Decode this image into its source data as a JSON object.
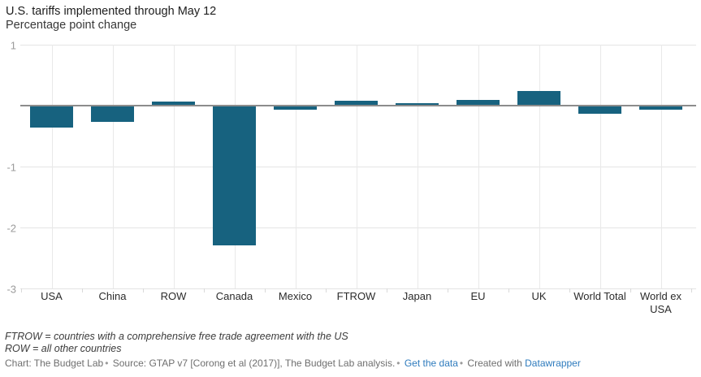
{
  "header": {
    "title": "U.S. tariffs implemented through May 12",
    "subtitle": "Percentage point change"
  },
  "chart_data": {
    "type": "bar",
    "categories": [
      "USA",
      "China",
      "ROW",
      "Canada",
      "Mexico",
      "FTROW",
      "Japan",
      "EU",
      "UK",
      "World Total",
      "World ex USA"
    ],
    "values": [
      -0.36,
      -0.27,
      0.07,
      -2.29,
      -0.07,
      0.08,
      0.04,
      0.09,
      0.24,
      -0.13,
      -0.06
    ],
    "title": "U.S. tariffs implemented through May 12",
    "subtitle": "Percentage point change",
    "xlabel": "",
    "ylabel": "Percentage point change",
    "ylim": [
      -3,
      1
    ],
    "yticks": [
      1,
      0,
      -1,
      -2,
      -3
    ],
    "labeled_yticks": [
      1,
      -1,
      -2,
      -3
    ],
    "grid": true,
    "legend": false,
    "bar_color": "#17627f"
  },
  "colors": {
    "bar": "#17627f",
    "gridline": "#e4e4e4",
    "zero_line": "#8c8c8c",
    "link": "#2e7bbd"
  },
  "footnotes": [
    "FTROW = countries with a comprehensive free trade agreement with the US",
    "ROW = all other countries"
  ],
  "footer": {
    "chart_credit": "Chart: The Budget Lab",
    "separator": "•",
    "source": "Source: GTAP v7 [Corong et al (2017)], The Budget Lab analysis.",
    "get_data_link": "Get the data",
    "created_with": "Created with",
    "datawrapper_link": "Datawrapper"
  }
}
